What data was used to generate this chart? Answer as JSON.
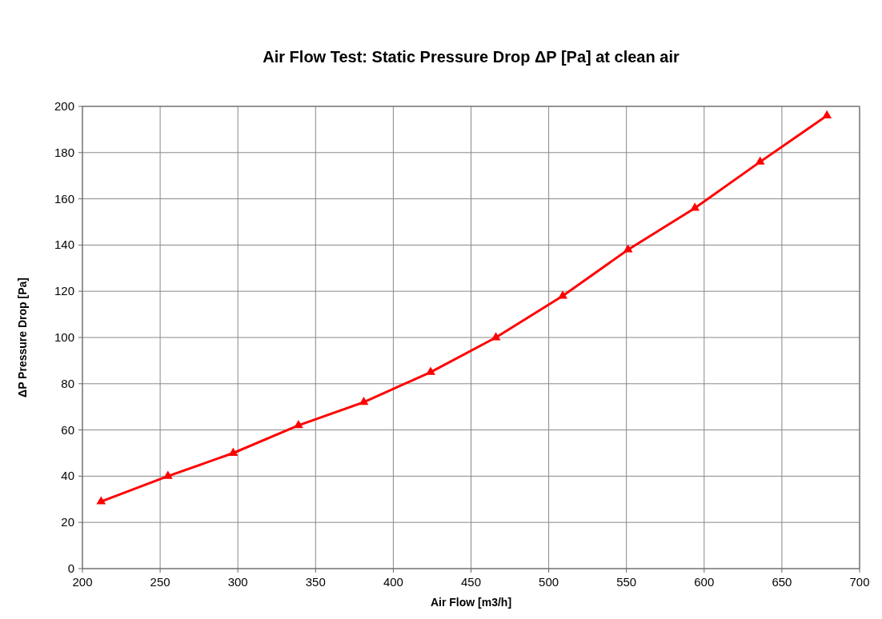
{
  "chart_data": {
    "type": "line",
    "title": "Air Flow Test: Static Pressure Drop ΔP [Pa] at clean air",
    "xlabel": "Air Flow [m3/h]",
    "ylabel": "ΔP Pressure Drop [Pa]",
    "x": [
      212,
      255,
      297,
      339,
      381,
      424,
      466,
      509,
      551,
      594,
      636,
      679
    ],
    "series": [
      {
        "color": "#ff0000",
        "values": [
          29,
          40,
          50,
          62,
          72,
          85,
          100,
          118,
          138,
          156,
          176,
          196
        ]
      }
    ],
    "xlim": [
      200,
      700
    ],
    "xticks": [
      200,
      250,
      300,
      350,
      400,
      450,
      500,
      550,
      600,
      650,
      700
    ],
    "ylim": [
      0,
      200
    ],
    "yticks": [
      0,
      20,
      40,
      60,
      80,
      100,
      120,
      140,
      160,
      180,
      200
    ],
    "grid": true,
    "marker": "triangle",
    "line_style": "solid"
  }
}
